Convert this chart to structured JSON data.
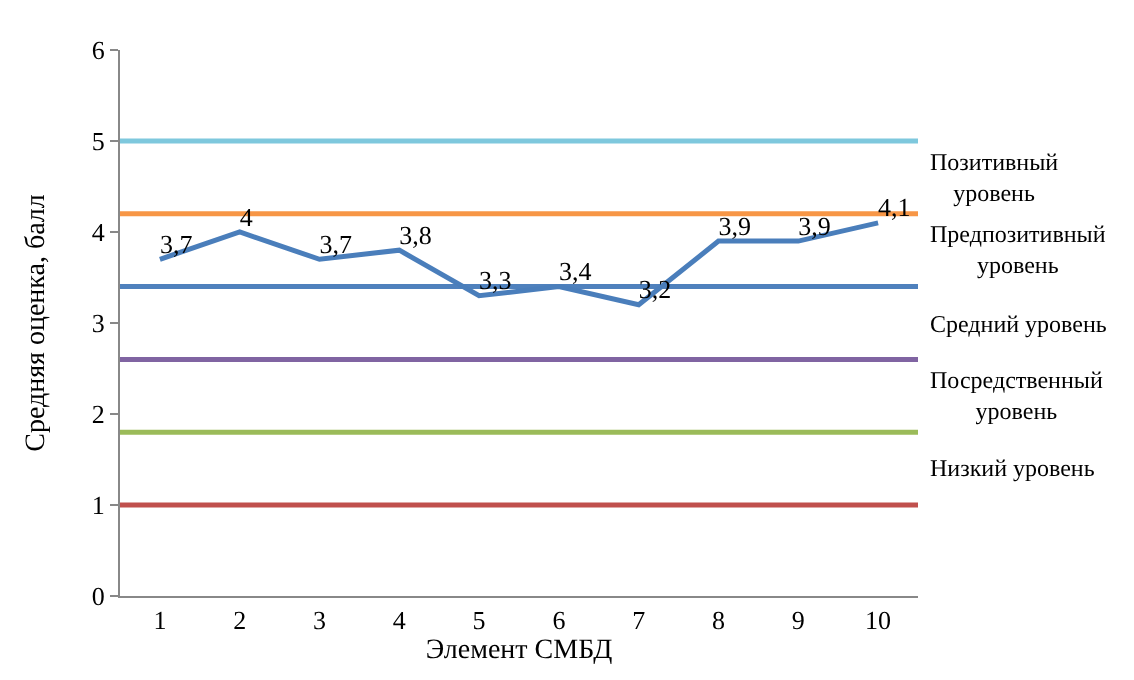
{
  "chart_data": {
    "type": "line",
    "xlabel": "Элемент СМБД",
    "ylabel": "Средняя оценка, балл",
    "categories": [
      "1",
      "2",
      "3",
      "4",
      "5",
      "6",
      "7",
      "8",
      "9",
      "10"
    ],
    "series": [
      {
        "color": "#4a7ebb",
        "values": [
          3.7,
          4,
          3.7,
          3.8,
          3.3,
          3.4,
          3.2,
          3.9,
          3.9,
          4.1
        ],
        "value_labels": [
          "3,7",
          "4",
          "3,7",
          "3,8",
          "3,3",
          "3,4",
          "3,2",
          "3,9",
          "3,9",
          "4,1"
        ]
      }
    ],
    "ylim": [
      0,
      6
    ],
    "yticks": [
      0,
      1,
      2,
      3,
      4,
      5,
      6
    ],
    "grid": false,
    "legend": false,
    "marker": "none",
    "line_style": "solid",
    "ref_lines": [
      {
        "axis": "y",
        "value": 5,
        "color": "#7ec8dd"
      },
      {
        "axis": "y",
        "value": 4.2,
        "color": "#f79646"
      },
      {
        "axis": "y",
        "value": 3.4,
        "color": "#4f81bd"
      },
      {
        "axis": "y",
        "value": 2.6,
        "color": "#8064a2"
      },
      {
        "axis": "y",
        "value": 1.8,
        "color": "#9bbb59"
      },
      {
        "axis": "y",
        "value": 1,
        "color": "#c0504d"
      }
    ],
    "annotations": [
      "Позитивный уровень",
      "Предпозитивный уровень",
      "Средний уровень",
      "Посредственный уровень",
      "Низкий уровень"
    ]
  }
}
